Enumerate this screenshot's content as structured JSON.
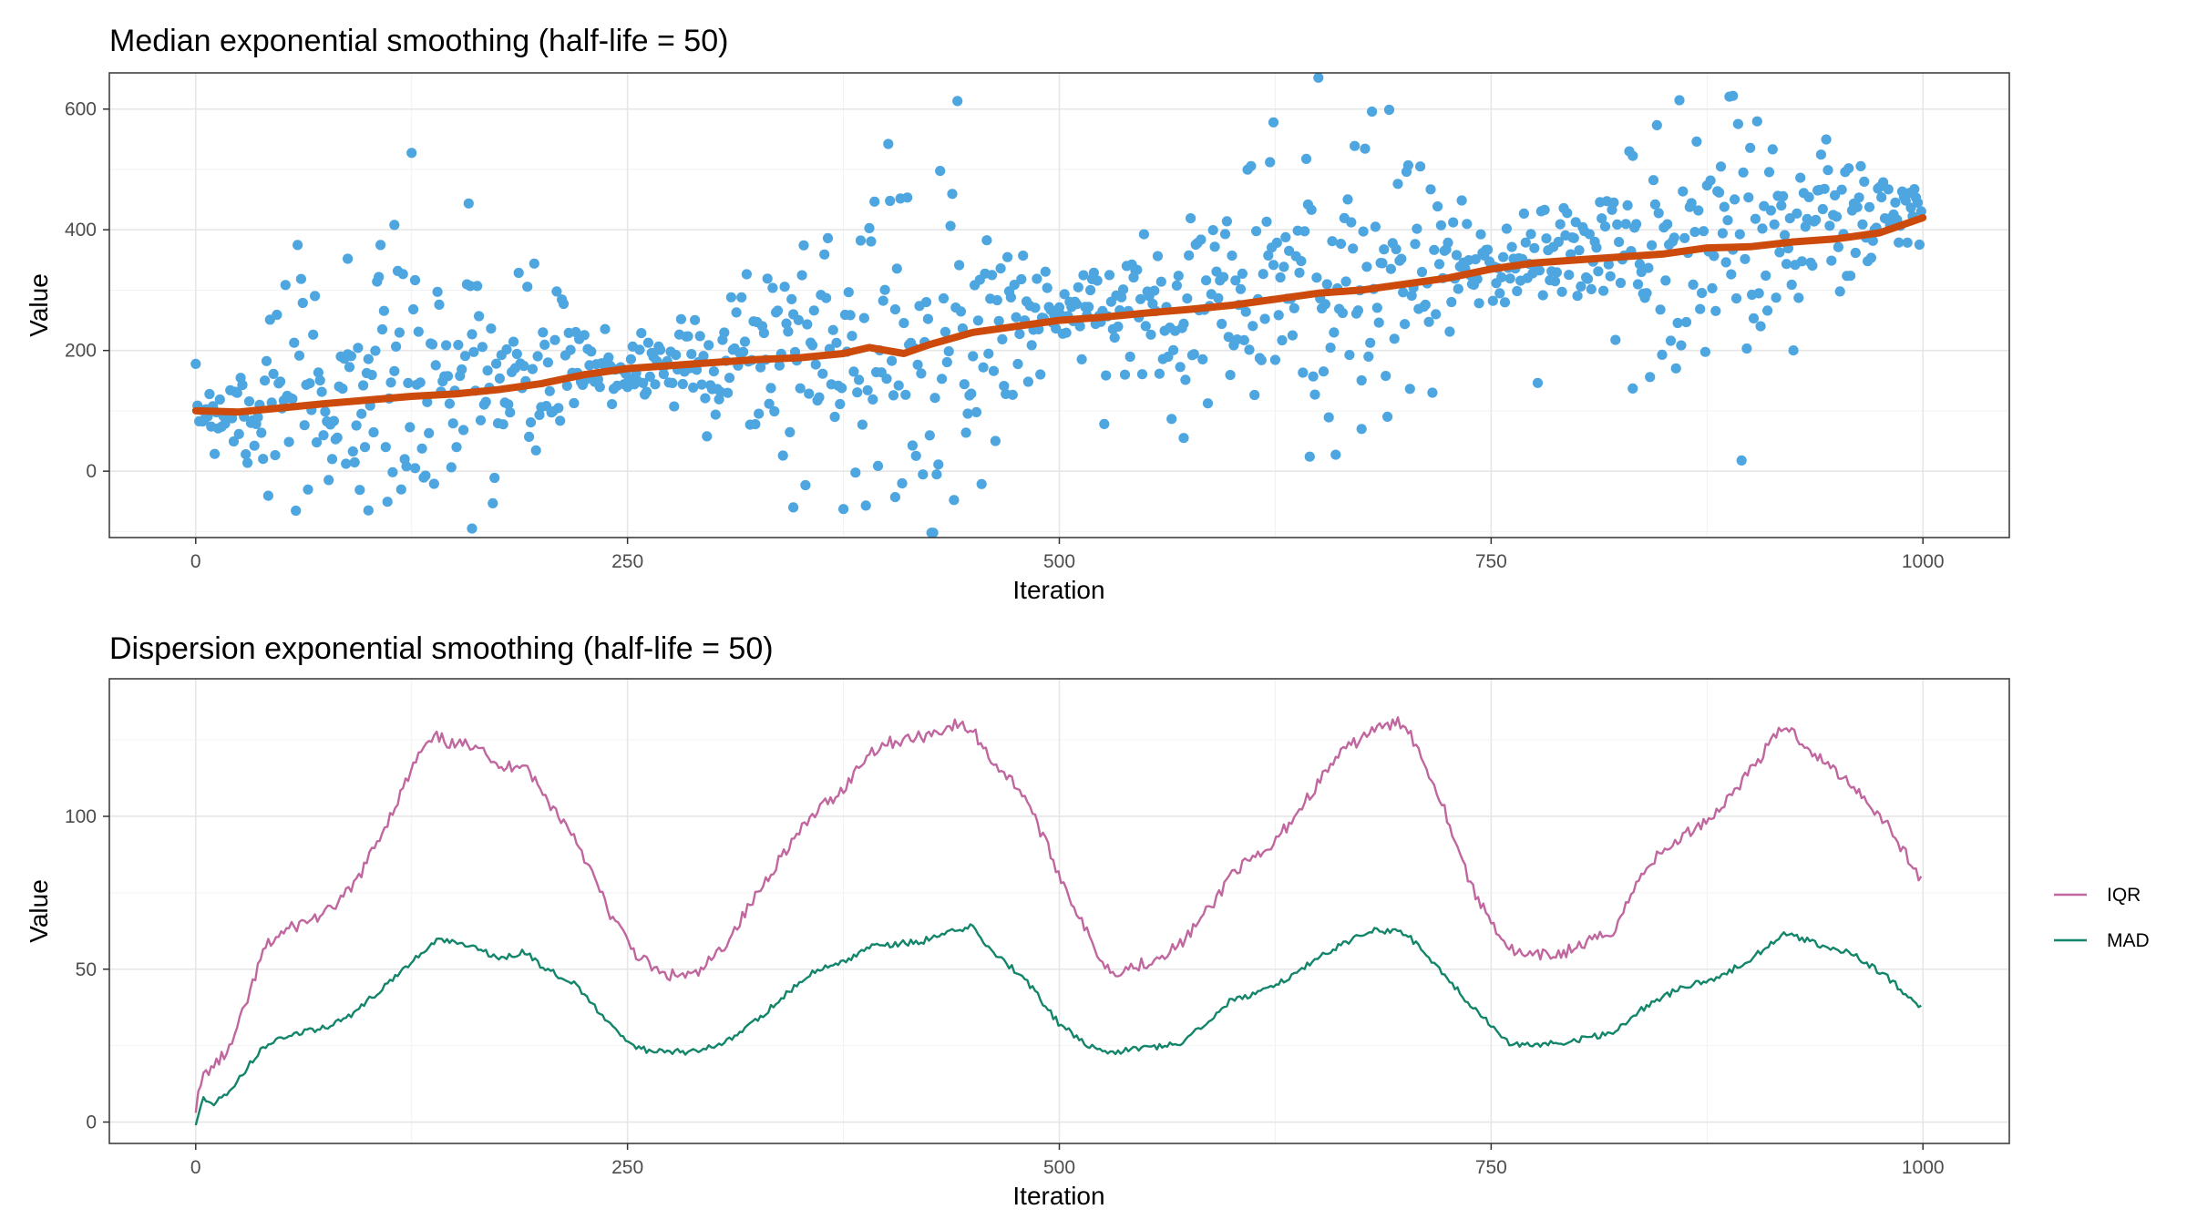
{
  "colors": {
    "points": "#4ea6e0",
    "median_line": "#cc4a0c",
    "iqr": "#c0679f",
    "mad": "#13856a"
  },
  "chart_data": [
    {
      "type": "scatter",
      "title": "Median exponential smoothing (half-life = 50)",
      "xlabel": "Iteration",
      "ylabel": "Value",
      "xlim": [
        -50,
        1050
      ],
      "ylim": [
        -110,
        660
      ],
      "xticks": [
        0,
        250,
        500,
        750,
        1000
      ],
      "xtick_labels": [
        "0",
        "250",
        "500",
        "750",
        "1000"
      ],
      "yticks": [
        0,
        200,
        400,
        600
      ],
      "ytick_labels": [
        "0",
        "200",
        "400",
        "600"
      ],
      "grid": true,
      "point_generation": {
        "n": 1000,
        "trend": [
          [
            0,
            100
          ],
          [
            250,
            170
          ],
          [
            500,
            260
          ],
          [
            750,
            340
          ],
          [
            1000,
            430
          ]
        ],
        "spread": [
          [
            0,
            20
          ],
          [
            40,
            80
          ],
          [
            150,
            130
          ],
          [
            250,
            25
          ],
          [
            300,
            60
          ],
          [
            400,
            130
          ],
          [
            450,
            120
          ],
          [
            500,
            25
          ],
          [
            600,
            100
          ],
          [
            680,
            140
          ],
          [
            750,
            30
          ],
          [
            830,
            90
          ],
          [
            900,
            120
          ],
          [
            1000,
            20
          ]
        ],
        "seed": 7
      },
      "sample_points": [
        {
          "x": 115,
          "y": 408
        },
        {
          "x": 88,
          "y": 352
        },
        {
          "x": 160,
          "y": -95
        },
        {
          "x": 127,
          "y": 5
        },
        {
          "x": 405,
          "y": -43
        },
        {
          "x": 624,
          "y": 578
        },
        {
          "x": 890,
          "y": 622
        },
        {
          "x": 572,
          "y": 55
        },
        {
          "x": 832,
          "y": 137
        },
        {
          "x": 675,
          "y": 70
        },
        {
          "x": 346,
          "y": -60
        },
        {
          "x": 100,
          "y": -65
        }
      ],
      "series": [
        {
          "name": "",
          "kind": "smoothed median",
          "x": [
            0,
            25,
            50,
            75,
            100,
            125,
            150,
            175,
            200,
            225,
            250,
            275,
            300,
            325,
            350,
            375,
            390,
            400,
            410,
            425,
            450,
            475,
            500,
            525,
            550,
            575,
            600,
            625,
            650,
            675,
            700,
            725,
            750,
            775,
            800,
            825,
            850,
            875,
            900,
            925,
            950,
            975,
            1000
          ],
          "y": [
            100,
            98,
            105,
            112,
            118,
            124,
            128,
            135,
            145,
            160,
            170,
            175,
            180,
            185,
            188,
            195,
            205,
            200,
            195,
            210,
            230,
            240,
            250,
            255,
            262,
            268,
            275,
            285,
            295,
            300,
            310,
            320,
            335,
            345,
            350,
            355,
            360,
            370,
            372,
            380,
            385,
            395,
            420
          ]
        }
      ]
    },
    {
      "type": "line",
      "title": "Dispersion exponential smoothing (half-life = 50)",
      "xlabel": "Iteration",
      "ylabel": "Value",
      "xlim": [
        -50,
        1050
      ],
      "ylim": [
        -7,
        145
      ],
      "xticks": [
        0,
        250,
        500,
        750,
        1000
      ],
      "xtick_labels": [
        "0",
        "250",
        "500",
        "750",
        "1000"
      ],
      "yticks": [
        0,
        50,
        100
      ],
      "ytick_labels": [
        "0",
        "50",
        "100"
      ],
      "grid": true,
      "legend_position": "right",
      "series": [
        {
          "name": "IQR",
          "x": [
            0,
            5,
            10,
            20,
            30,
            40,
            50,
            65,
            75,
            90,
            100,
            115,
            130,
            140,
            150,
            165,
            175,
            190,
            200,
            220,
            240,
            255,
            270,
            290,
            305,
            320,
            340,
            360,
            375,
            390,
            400,
            420,
            440,
            450,
            460,
            480,
            500,
            520,
            530,
            550,
            570,
            590,
            600,
            620,
            640,
            660,
            680,
            700,
            720,
            740,
            760,
            770,
            790,
            820,
            840,
            860,
            880,
            900,
            920,
            940,
            960,
            980,
            1000
          ],
          "y": [
            5,
            16,
            18,
            24,
            40,
            57,
            62,
            66,
            68,
            76,
            86,
            103,
            121,
            126,
            123,
            124,
            115,
            118,
            108,
            93,
            68,
            55,
            48,
            48,
            57,
            70,
            88,
            102,
            109,
            121,
            124,
            126,
            130,
            128,
            119,
            107,
            81,
            57,
            49,
            52,
            58,
            72,
            82,
            88,
            103,
            119,
            128,
            131,
            107,
            75,
            57,
            54,
            55,
            62,
            84,
            93,
            101,
            115,
            130,
            119,
            110,
            97,
            78
          ]
        },
        {
          "name": "MAD",
          "x": [
            0,
            5,
            10,
            20,
            30,
            40,
            50,
            65,
            75,
            90,
            100,
            115,
            130,
            140,
            150,
            165,
            175,
            190,
            200,
            220,
            240,
            255,
            270,
            290,
            305,
            320,
            340,
            360,
            375,
            390,
            400,
            420,
            440,
            450,
            460,
            480,
            500,
            520,
            530,
            550,
            570,
            590,
            600,
            620,
            640,
            660,
            680,
            700,
            720,
            740,
            760,
            770,
            790,
            820,
            840,
            860,
            880,
            900,
            920,
            940,
            960,
            980,
            1000
          ],
          "y": [
            0,
            8,
            6,
            10,
            18,
            25,
            28,
            30,
            31,
            35,
            40,
            47,
            55,
            60,
            59,
            57,
            53,
            56,
            51,
            45,
            32,
            24,
            23,
            23,
            26,
            31,
            41,
            50,
            52,
            57,
            58,
            59,
            63,
            64,
            56,
            47,
            32,
            24,
            23,
            24,
            26,
            35,
            40,
            43,
            50,
            57,
            63,
            62,
            50,
            37,
            26,
            25,
            26,
            29,
            38,
            44,
            47,
            53,
            62,
            58,
            55,
            47,
            37
          ]
        }
      ]
    }
  ]
}
